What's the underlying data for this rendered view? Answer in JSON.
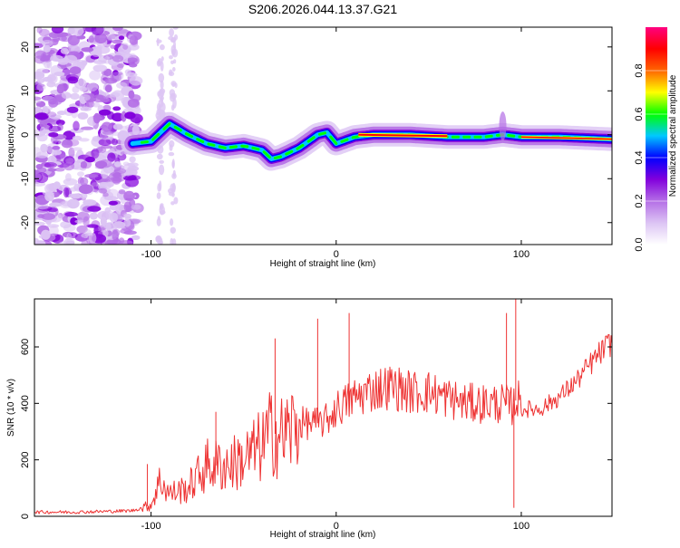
{
  "title": "S206.2026.044.13.37.G21",
  "chart_data": [
    {
      "type": "heatmap",
      "xlabel": "Height of straight line (km)",
      "ylabel": "Frequency (Hz)",
      "xlim": [
        -163,
        149
      ],
      "ylim": [
        -25,
        24.5
      ],
      "xticks": [
        -100,
        0,
        100
      ],
      "yticks": [
        -20,
        -10,
        0,
        10,
        20
      ],
      "colorbar": {
        "label": "Normalized spectral amplitude",
        "range": [
          0,
          1
        ],
        "ticks": [
          "0.0",
          "0.2",
          "0.4",
          "0.6",
          "0.8"
        ],
        "colors": [
          "#ffffff",
          "#dcc4f4",
          "#b46ee6",
          "#8200dc",
          "#0000ff",
          "#00c8ff",
          "#00ff00",
          "#ffff00",
          "#ff6600",
          "#ff0000",
          "#ff0080"
        ]
      },
      "ridge": {
        "x": [
          -110,
          -100,
          -90,
          -80,
          -70,
          -60,
          -50,
          -40,
          -35,
          -30,
          -20,
          -10,
          -5,
          0,
          10,
          20,
          40,
          60,
          80,
          90,
          100,
          120,
          149
        ],
        "freq": [
          -2,
          -1.5,
          2.5,
          0,
          -2,
          -3,
          -2.5,
          -3.5,
          -5.5,
          -5,
          -3,
          0,
          0.5,
          -2,
          -0.5,
          0,
          0,
          -0.5,
          -0.5,
          0,
          -0.5,
          -0.5,
          -1
        ]
      },
      "noise_region_x": [
        -163,
        -107
      ]
    },
    {
      "type": "line",
      "xlabel": "Height of straight line (km)",
      "ylabel": "SNR (10 * v/v)",
      "xlim": [
        -163,
        149
      ],
      "ylim": [
        0,
        770
      ],
      "xticks": [
        -100,
        0,
        100
      ],
      "yticks": [
        0,
        200,
        400,
        600
      ],
      "series": [
        {
          "name": "SNR",
          "color": "#ee3333",
          "x": [
            -163,
            -140,
            -120,
            -110,
            -100,
            -95,
            -90,
            -80,
            -70,
            -60,
            -50,
            -40,
            -35,
            -30,
            -20,
            -10,
            -5,
            0,
            10,
            20,
            30,
            40,
            50,
            60,
            70,
            80,
            90,
            95,
            98,
            100,
            110,
            120,
            130,
            140,
            149
          ],
          "y": [
            15,
            15,
            18,
            20,
            40,
            130,
            80,
            100,
            180,
            180,
            200,
            250,
            300,
            280,
            330,
            330,
            340,
            380,
            420,
            450,
            460,
            440,
            440,
            420,
            400,
            400,
            400,
            390,
            420,
            380,
            380,
            420,
            480,
            560,
            620
          ]
        }
      ],
      "spikes": [
        {
          "x": -102,
          "y": 185
        },
        {
          "x": -65,
          "y": 370
        },
        {
          "x": -33,
          "y": 630
        },
        {
          "x": -10,
          "y": 700
        },
        {
          "x": 7,
          "y": 720
        },
        {
          "x": 92,
          "y": 720
        },
        {
          "x": 97,
          "y": 770
        },
        {
          "x": 96,
          "y": 30
        }
      ]
    }
  ]
}
